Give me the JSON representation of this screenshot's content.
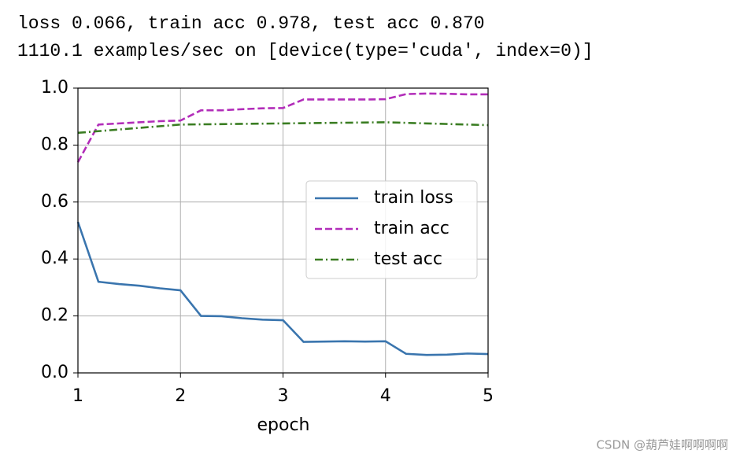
{
  "output": [
    "loss 0.066, train acc 0.978, test acc 0.870",
    "1110.1 examples/sec on [device(type='cuda', index=0)]"
  ],
  "watermark": "CSDN @葫芦娃啊啊啊啊",
  "chart_data": {
    "type": "line",
    "xlabel": "epoch",
    "x": [
      1,
      1.2,
      1.4,
      1.6,
      1.8,
      2,
      2.2,
      2.4,
      2.6,
      2.8,
      3,
      3.2,
      3.4,
      3.6,
      3.8,
      4,
      4.2,
      4.4,
      4.6,
      4.8,
      5
    ],
    "series": [
      {
        "name": "train loss",
        "color": "#3a75ae",
        "linestyle": "solid",
        "values": [
          0.53,
          0.32,
          0.312,
          0.306,
          0.297,
          0.29,
          0.2,
          0.199,
          0.192,
          0.187,
          0.185,
          0.109,
          0.11,
          0.111,
          0.11,
          0.111,
          0.067,
          0.063,
          0.064,
          0.068,
          0.066
        ]
      },
      {
        "name": "train acc",
        "color": "#b22db9",
        "linestyle": "dashed",
        "values": [
          0.74,
          0.872,
          0.876,
          0.88,
          0.884,
          0.886,
          0.922,
          0.922,
          0.926,
          0.929,
          0.93,
          0.96,
          0.96,
          0.96,
          0.96,
          0.961,
          0.979,
          0.981,
          0.98,
          0.978,
          0.978
        ]
      },
      {
        "name": "test acc",
        "color": "#3a7d22",
        "linestyle": "dashdot",
        "x": [
          1,
          2,
          3,
          4,
          5
        ],
        "values": [
          0.843,
          0.872,
          0.876,
          0.88,
          0.87
        ]
      }
    ],
    "xlim": [
      1,
      5
    ],
    "xticks": [
      1,
      2,
      3,
      4,
      5
    ],
    "ylim": [
      0,
      1
    ],
    "yticks": [
      {
        "value": 0,
        "label": "0.0"
      },
      {
        "value": 0.2,
        "label": "0.2"
      },
      {
        "value": 0.4,
        "label": "0.4"
      },
      {
        "value": 0.6,
        "label": "0.6"
      },
      {
        "value": 0.8,
        "label": "0.8"
      },
      {
        "value": 1,
        "label": "1.0"
      }
    ],
    "grid": true,
    "legend": "center right"
  }
}
